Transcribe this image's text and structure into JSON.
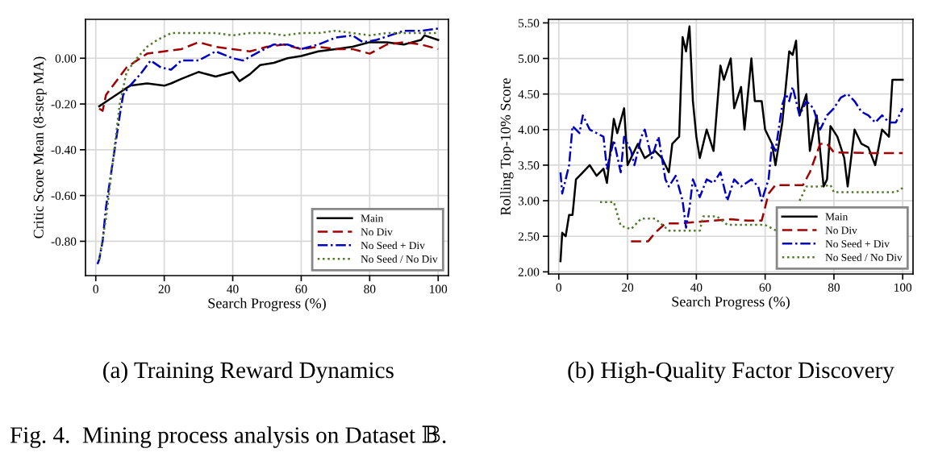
{
  "chart_data": [
    {
      "type": "line",
      "title": "(a) Training Reward Dynamics",
      "xlabel": "Search Progress (%)",
      "ylabel": "Critic Score Mean (8-step MA)",
      "xlim": [
        -3,
        103
      ],
      "xticks": [
        0,
        20,
        40,
        60,
        80,
        100
      ],
      "ylim": [
        -0.95,
        0.17
      ],
      "yticks": [
        {
          "value": -0.8,
          "label": "-0.80"
        },
        {
          "value": -0.6,
          "label": "-0.60"
        },
        {
          "value": -0.4,
          "label": "-0.40"
        },
        {
          "value": -0.2,
          "label": "-0.20"
        },
        {
          "value": 0.0,
          "label": "0.00"
        }
      ],
      "grid": true,
      "legend": "bottom right",
      "annotations": [
        "Fig. 4.  Mining process analysis on Dataset 𝔹."
      ],
      "series": [
        {
          "name": "Main",
          "color": "#000000",
          "line_style": "solid",
          "x": [
            1,
            2,
            5,
            8,
            10,
            15,
            20,
            22,
            25,
            30,
            35,
            40,
            42,
            45,
            48,
            52,
            56,
            60,
            65,
            70,
            75,
            80,
            85,
            90,
            95,
            96,
            100
          ],
          "values": [
            -0.21,
            -0.2,
            -0.17,
            -0.14,
            -0.12,
            -0.11,
            -0.12,
            -0.11,
            -0.09,
            -0.06,
            -0.08,
            -0.06,
            -0.1,
            -0.07,
            -0.03,
            -0.02,
            0.0,
            0.01,
            0.03,
            0.04,
            0.05,
            0.07,
            0.07,
            0.06,
            0.08,
            0.1,
            0.08
          ]
        },
        {
          "name": "No Div",
          "color": "#a00000",
          "line_style": "dashed",
          "x": [
            1,
            2,
            3,
            6,
            9,
            12,
            15,
            20,
            25,
            30,
            35,
            40,
            45,
            50,
            55,
            60,
            65,
            70,
            75,
            80,
            85,
            90,
            95,
            100
          ],
          "values": [
            -0.22,
            -0.23,
            -0.16,
            -0.1,
            -0.04,
            -0.01,
            0.02,
            0.03,
            0.04,
            0.07,
            0.05,
            0.04,
            0.03,
            0.05,
            0.06,
            0.04,
            0.05,
            0.04,
            0.04,
            0.02,
            0.06,
            0.07,
            0.06,
            0.04
          ]
        },
        {
          "name": "No Seed + Div",
          "color": "#0000c0",
          "line_style": "dashdot",
          "x": [
            0.5,
            1,
            2,
            3,
            5,
            7,
            8,
            10,
            13,
            16,
            19,
            22,
            25,
            30,
            35,
            40,
            43,
            48,
            52,
            56,
            60,
            65,
            70,
            75,
            78,
            82,
            86,
            90,
            95,
            100
          ],
          "values": [
            -0.9,
            -0.88,
            -0.8,
            -0.65,
            -0.45,
            -0.25,
            -0.16,
            -0.12,
            -0.07,
            -0.01,
            -0.04,
            -0.05,
            -0.01,
            -0.01,
            0.03,
            0.0,
            -0.01,
            0.03,
            0.06,
            0.06,
            0.04,
            0.06,
            0.09,
            0.1,
            0.07,
            0.08,
            0.1,
            0.12,
            0.12,
            0.13
          ]
        },
        {
          "name": "No Seed / No Div",
          "color": "#4f7a28",
          "line_style": "dotted",
          "x": [
            1,
            3,
            5,
            7,
            9,
            12,
            15,
            18,
            22,
            25,
            30,
            35,
            40,
            45,
            50,
            55,
            60,
            65,
            70,
            75,
            80,
            85,
            90,
            95,
            100
          ],
          "values": [
            -0.88,
            -0.7,
            -0.45,
            -0.2,
            -0.06,
            0.0,
            0.05,
            0.08,
            0.11,
            0.11,
            0.11,
            0.11,
            0.1,
            0.11,
            0.11,
            0.1,
            0.11,
            0.11,
            0.12,
            0.11,
            0.1,
            0.11,
            0.11,
            0.11,
            0.11
          ]
        }
      ]
    },
    {
      "type": "line",
      "title": "(b) High-Quality Factor Discovery",
      "xlabel": "Search Progress (%)",
      "ylabel": "Rolling Top-10% Score",
      "xlim": [
        -3,
        103
      ],
      "xticks": [
        0,
        20,
        40,
        60,
        80,
        100
      ],
      "ylim": [
        1.97,
        5.55
      ],
      "yticks": [
        {
          "value": 2.0,
          "label": "2.00"
        },
        {
          "value": 2.5,
          "label": "2.50"
        },
        {
          "value": 3.0,
          "label": "3.00"
        },
        {
          "value": 3.5,
          "label": "3.50"
        },
        {
          "value": 4.0,
          "label": "4.00"
        },
        {
          "value": 4.5,
          "label": "4.50"
        },
        {
          "value": 5.0,
          "label": "5.00"
        },
        {
          "value": 5.5,
          "label": "5.50"
        }
      ],
      "grid": true,
      "legend": "bottom right",
      "series": [
        {
          "name": "Main",
          "color": "#000000",
          "line_style": "solid",
          "x": [
            0.5,
            1,
            2,
            3,
            4,
            5,
            7,
            9,
            11,
            13,
            14,
            16,
            17,
            19,
            20,
            21,
            23,
            25,
            28,
            30,
            32,
            33,
            35,
            36,
            37,
            38,
            39,
            40,
            41,
            43,
            45,
            47,
            48,
            50,
            51,
            53,
            54,
            56,
            57,
            59,
            60,
            62,
            63,
            65,
            67,
            68,
            69,
            70,
            72,
            73,
            75,
            77,
            78,
            79,
            81,
            83,
            84,
            86,
            88,
            90,
            92,
            94,
            96,
            97,
            99,
            100
          ],
          "values": [
            2.15,
            2.55,
            2.5,
            2.8,
            2.8,
            3.3,
            3.4,
            3.5,
            3.35,
            3.45,
            3.25,
            4.15,
            3.95,
            4.3,
            3.5,
            3.6,
            3.8,
            3.6,
            3.7,
            3.6,
            3.4,
            3.8,
            3.9,
            5.3,
            5.1,
            5.45,
            4.4,
            3.9,
            3.6,
            4.0,
            3.7,
            4.9,
            4.7,
            5.0,
            4.3,
            4.6,
            4.0,
            5.0,
            4.4,
            4.4,
            4.0,
            3.8,
            3.5,
            4.1,
            5.1,
            5.05,
            5.25,
            4.2,
            4.5,
            3.7,
            4.2,
            3.2,
            3.3,
            4.05,
            3.9,
            3.6,
            3.2,
            4.0,
            3.8,
            3.75,
            3.5,
            4.0,
            3.9,
            4.7,
            4.7,
            4.7
          ]
        },
        {
          "name": "No Div",
          "color": "#a00000",
          "line_style": "dashed",
          "x": [
            21,
            26,
            28,
            31,
            35,
            40,
            45,
            50,
            55,
            59,
            61,
            63,
            67,
            71,
            73,
            76,
            78,
            80,
            90,
            100
          ],
          "values": [
            2.43,
            2.43,
            2.55,
            2.68,
            2.68,
            2.7,
            2.72,
            2.74,
            2.72,
            2.72,
            3.1,
            3.22,
            3.22,
            3.22,
            3.4,
            3.8,
            3.8,
            3.68,
            3.67,
            3.67
          ]
        },
        {
          "name": "No Seed + Div",
          "color": "#0000c0",
          "line_style": "dashdot",
          "x": [
            0.5,
            1,
            3,
            4,
            6,
            7,
            9,
            11,
            13,
            14,
            16,
            18,
            19,
            21,
            22,
            24,
            25,
            27,
            29,
            31,
            32,
            34,
            36,
            37,
            38,
            39,
            41,
            43,
            45,
            47,
            49,
            51,
            53,
            56,
            58,
            59,
            61,
            62,
            63,
            65,
            66,
            67,
            68,
            70,
            72,
            74,
            76,
            78,
            80,
            82,
            84,
            86,
            88,
            90,
            92,
            94,
            96,
            98,
            100
          ],
          "values": [
            3.4,
            3.1,
            3.5,
            4.05,
            3.95,
            4.2,
            4.0,
            3.95,
            3.9,
            3.45,
            3.85,
            3.4,
            3.9,
            3.7,
            3.5,
            3.9,
            4.0,
            3.6,
            3.9,
            3.3,
            3.2,
            3.35,
            3.0,
            2.62,
            2.9,
            3.3,
            3.05,
            3.3,
            3.25,
            3.4,
            3.0,
            3.3,
            3.2,
            3.3,
            3.2,
            3.0,
            3.3,
            3.8,
            3.7,
            4.35,
            4.5,
            4.4,
            4.6,
            4.2,
            4.4,
            4.3,
            4.0,
            4.2,
            4.3,
            4.45,
            4.5,
            4.4,
            4.25,
            4.2,
            4.1,
            4.2,
            4.1,
            4.1,
            4.3
          ]
        },
        {
          "name": "No Seed / No Div",
          "color": "#4f7a28",
          "line_style": "dotted",
          "x": [
            12,
            16,
            18,
            21,
            24,
            28,
            32,
            38,
            41,
            42,
            46,
            49,
            55,
            60,
            64,
            66,
            70,
            72,
            76,
            79,
            80,
            90,
            98,
            100
          ],
          "values": [
            2.98,
            2.98,
            2.65,
            2.6,
            2.75,
            2.75,
            2.58,
            2.58,
            2.58,
            2.78,
            2.78,
            2.66,
            2.66,
            2.66,
            2.56,
            null,
            3.0,
            3.2,
            3.2,
            3.22,
            3.12,
            3.12,
            3.12,
            3.18
          ]
        }
      ]
    }
  ]
}
